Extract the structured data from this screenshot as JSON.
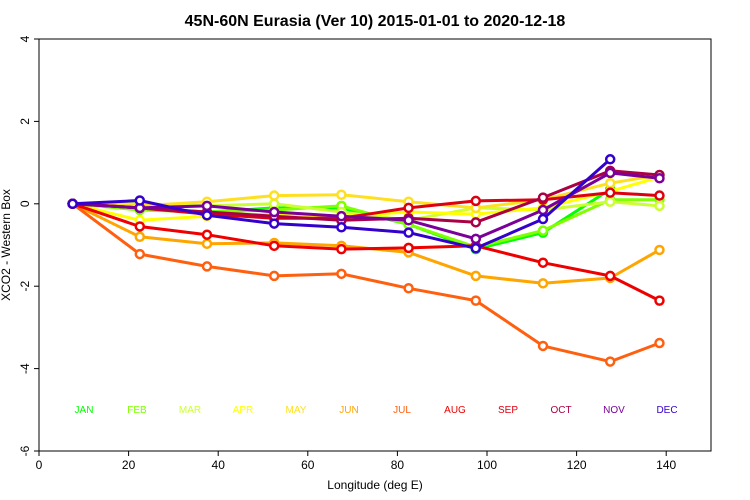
{
  "chart_data": {
    "type": "line",
    "title": "45N-60N Eurasia (Ver 10)   2015-01-01 to 2020-12-18",
    "xlabel": "Longitude (deg E)",
    "ylabel": "XCO2 - Western Box",
    "xlim": [
      0,
      150
    ],
    "ylim": [
      -6,
      4
    ],
    "xticks": [
      0,
      20,
      40,
      60,
      80,
      100,
      120,
      140
    ],
    "yticks": [
      -6,
      -4,
      -2,
      0,
      2,
      4
    ],
    "x": [
      7.5,
      22.5,
      37.5,
      52.5,
      67.5,
      82.5,
      97.5,
      112.5,
      127.5,
      138.5
    ],
    "series": [
      {
        "name": "JAN",
        "color": "#00FF00",
        "values": [
          0.0,
          -0.1,
          -0.2,
          -0.1,
          -0.1,
          -0.5,
          -1.1,
          -0.7,
          0.35,
          null
        ]
      },
      {
        "name": "FEB",
        "color": "#7FFF00",
        "values": [
          0.0,
          -0.15,
          -0.2,
          -0.15,
          -0.05,
          -0.5,
          -1.05,
          -0.65,
          0.1,
          0.1
        ]
      },
      {
        "name": "MAR",
        "color": "#CCFF33",
        "values": [
          0.0,
          0.0,
          -0.05,
          0.0,
          -0.2,
          -0.4,
          -0.1,
          -0.15,
          0.05,
          -0.05
        ]
      },
      {
        "name": "APR",
        "color": "#FFFF00",
        "values": [
          0.0,
          -0.4,
          -0.3,
          -0.25,
          -0.3,
          -0.2,
          -0.25,
          -0.1,
          0.3,
          0.65
        ]
      },
      {
        "name": "MAY",
        "color": "#FFE020",
        "values": [
          0.0,
          -0.05,
          0.05,
          0.2,
          0.22,
          0.05,
          -0.1,
          0.1,
          0.5,
          0.7
        ]
      },
      {
        "name": "JUN",
        "color": "#FFA500",
        "values": [
          0.0,
          -0.8,
          -0.97,
          -0.95,
          -1.02,
          -1.18,
          -1.75,
          -1.93,
          -1.8,
          -1.12
        ]
      },
      {
        "name": "JUL",
        "color": "#FF6010",
        "values": [
          0.0,
          -1.22,
          -1.52,
          -1.75,
          -1.7,
          -2.05,
          -2.35,
          -3.45,
          -3.83,
          -3.38
        ]
      },
      {
        "name": "AUG",
        "color": "#EE0000",
        "values": [
          0.0,
          -0.55,
          -0.75,
          -1.02,
          -1.1,
          -1.07,
          -1.02,
          -1.43,
          -1.75,
          -2.35
        ]
      },
      {
        "name": "SEP",
        "color": "#DD0011",
        "values": [
          0.0,
          -0.1,
          -0.25,
          -0.35,
          -0.35,
          -0.1,
          0.07,
          0.1,
          0.27,
          0.2
        ]
      },
      {
        "name": "OCT",
        "color": "#AA0044",
        "values": [
          0.0,
          -0.1,
          -0.2,
          -0.3,
          -0.4,
          -0.35,
          -0.45,
          0.15,
          0.8,
          0.7
        ]
      },
      {
        "name": "NOV",
        "color": "#7A0099",
        "values": [
          0.0,
          -0.1,
          -0.05,
          -0.2,
          -0.3,
          -0.4,
          -0.85,
          -0.15,
          0.75,
          0.62
        ]
      },
      {
        "name": "DEC",
        "color": "#3300CC",
        "values": [
          0.0,
          0.08,
          -0.28,
          -0.48,
          -0.57,
          -0.7,
          -1.08,
          -0.37,
          1.08,
          null
        ]
      }
    ]
  }
}
